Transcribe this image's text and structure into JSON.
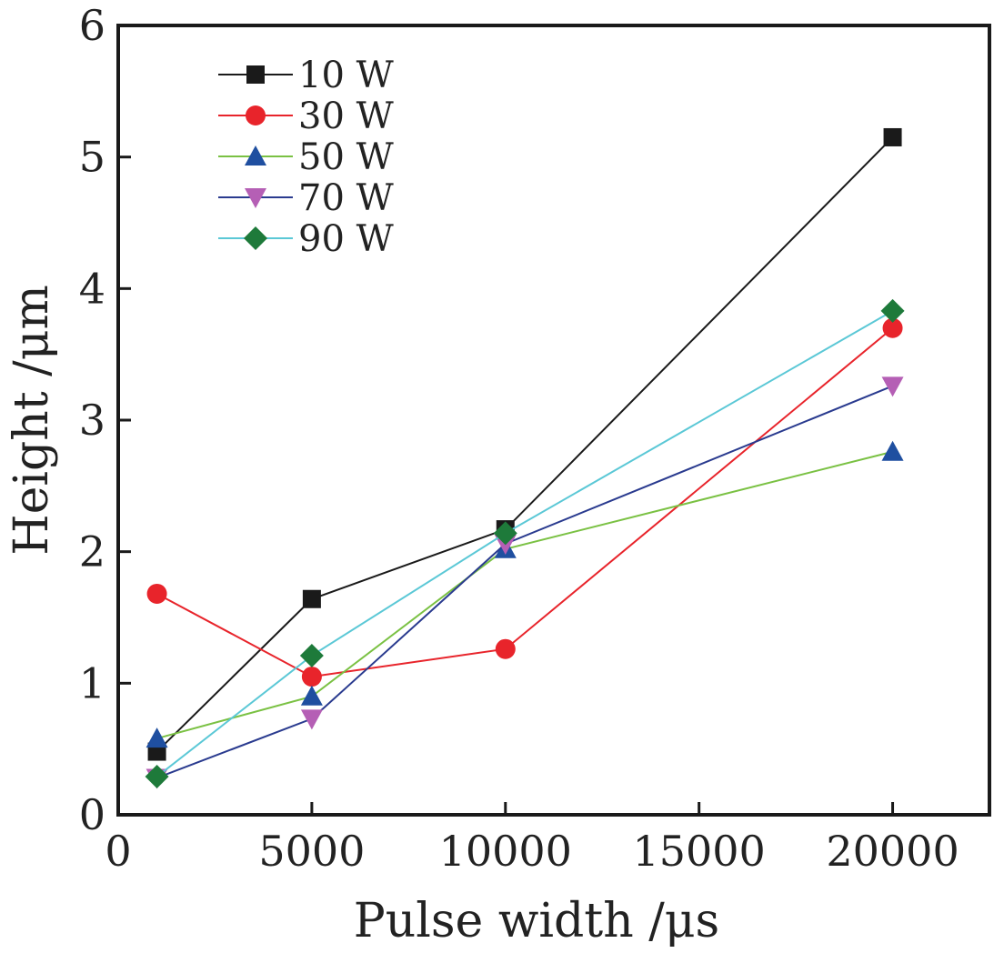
{
  "chart_data": {
    "type": "line",
    "xlabel": "Pulse width /μs",
    "ylabel": "Height /μm",
    "xlim": [
      0,
      22500
    ],
    "ylim": [
      0,
      6
    ],
    "xticks": [
      0,
      5000,
      10000,
      15000,
      20000
    ],
    "yticks": [
      0,
      1,
      2,
      3,
      4,
      5,
      6
    ],
    "grid": false,
    "legend_position": "top-left",
    "x": [
      1000,
      5000,
      10000,
      20000
    ],
    "series": [
      {
        "name": "10 W",
        "values": [
          0.48,
          1.64,
          2.17,
          5.15
        ],
        "color": "#1a1a1a",
        "marker": "square"
      },
      {
        "name": "30 W",
        "values": [
          1.68,
          1.05,
          1.26,
          3.7
        ],
        "color": "#e8242b",
        "marker": "circle"
      },
      {
        "name": "50 W",
        "values": [
          0.58,
          0.9,
          2.02,
          2.76
        ],
        "color": "#7ac143",
        "line_color": "#7ac143",
        "marker_color": "#1f4fa0",
        "marker": "triangle-up"
      },
      {
        "name": "70 W",
        "values": [
          0.28,
          0.73,
          2.06,
          3.26
        ],
        "color": "#2a3b8f",
        "line_color": "#2a3b8f",
        "marker_color": "#b55fb5",
        "marker": "triangle-down"
      },
      {
        "name": "90 W",
        "values": [
          0.29,
          1.21,
          2.14,
          3.83
        ],
        "color": "#5bc8d6",
        "line_color": "#5bc8d6",
        "marker_color": "#1e7a3a",
        "marker": "diamond"
      }
    ]
  }
}
